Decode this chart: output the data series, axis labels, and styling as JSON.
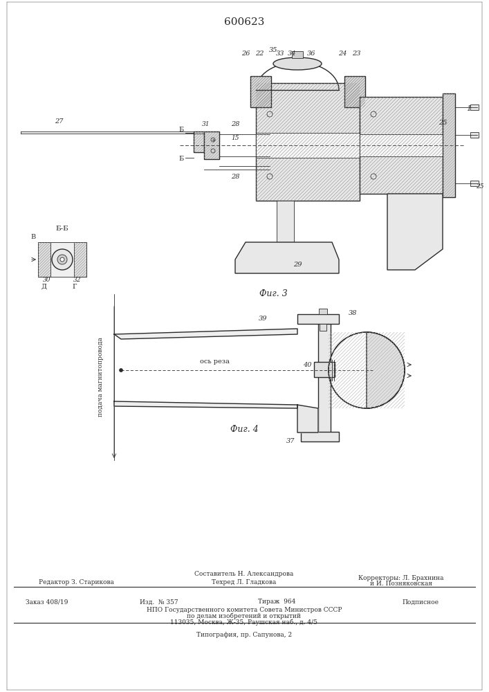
{
  "title": "600623",
  "title_fontsize": 11,
  "bg_color": "#ffffff",
  "line_color": "#2a2a2a",
  "fig3_caption": "Фиг. 3",
  "fig4_caption": "Фиг. 4",
  "footer_line0_center": "Составитель Н. Александрова",
  "footer_line1_left": "Редактор З. Старикова",
  "footer_line1_center": "Техред Л. Гладкова",
  "footer_line1_right": "Корректоры: Л. Брахнина",
  "footer_line1_right2": "и И. Позняковская",
  "footer_line2_col1": "Заказ 408/19",
  "footer_line2_col2": "Изд.  № 357",
  "footer_line2_col3": "Тираж  964",
  "footer_line2_col4": "Подписное",
  "footer_line3": "НПО Государственного комитета Совета Министров СССР",
  "footer_line4": "по делам изобретений и открытий",
  "footer_line5": "113035, Москва, Ж-35, Раушская наб., д. 4/5",
  "footer_line6": "Типография, пр. Сапунова, 2",
  "font_small": 6.5,
  "font_tiny": 6.0,
  "hatch_gray": "#aaaaaa"
}
